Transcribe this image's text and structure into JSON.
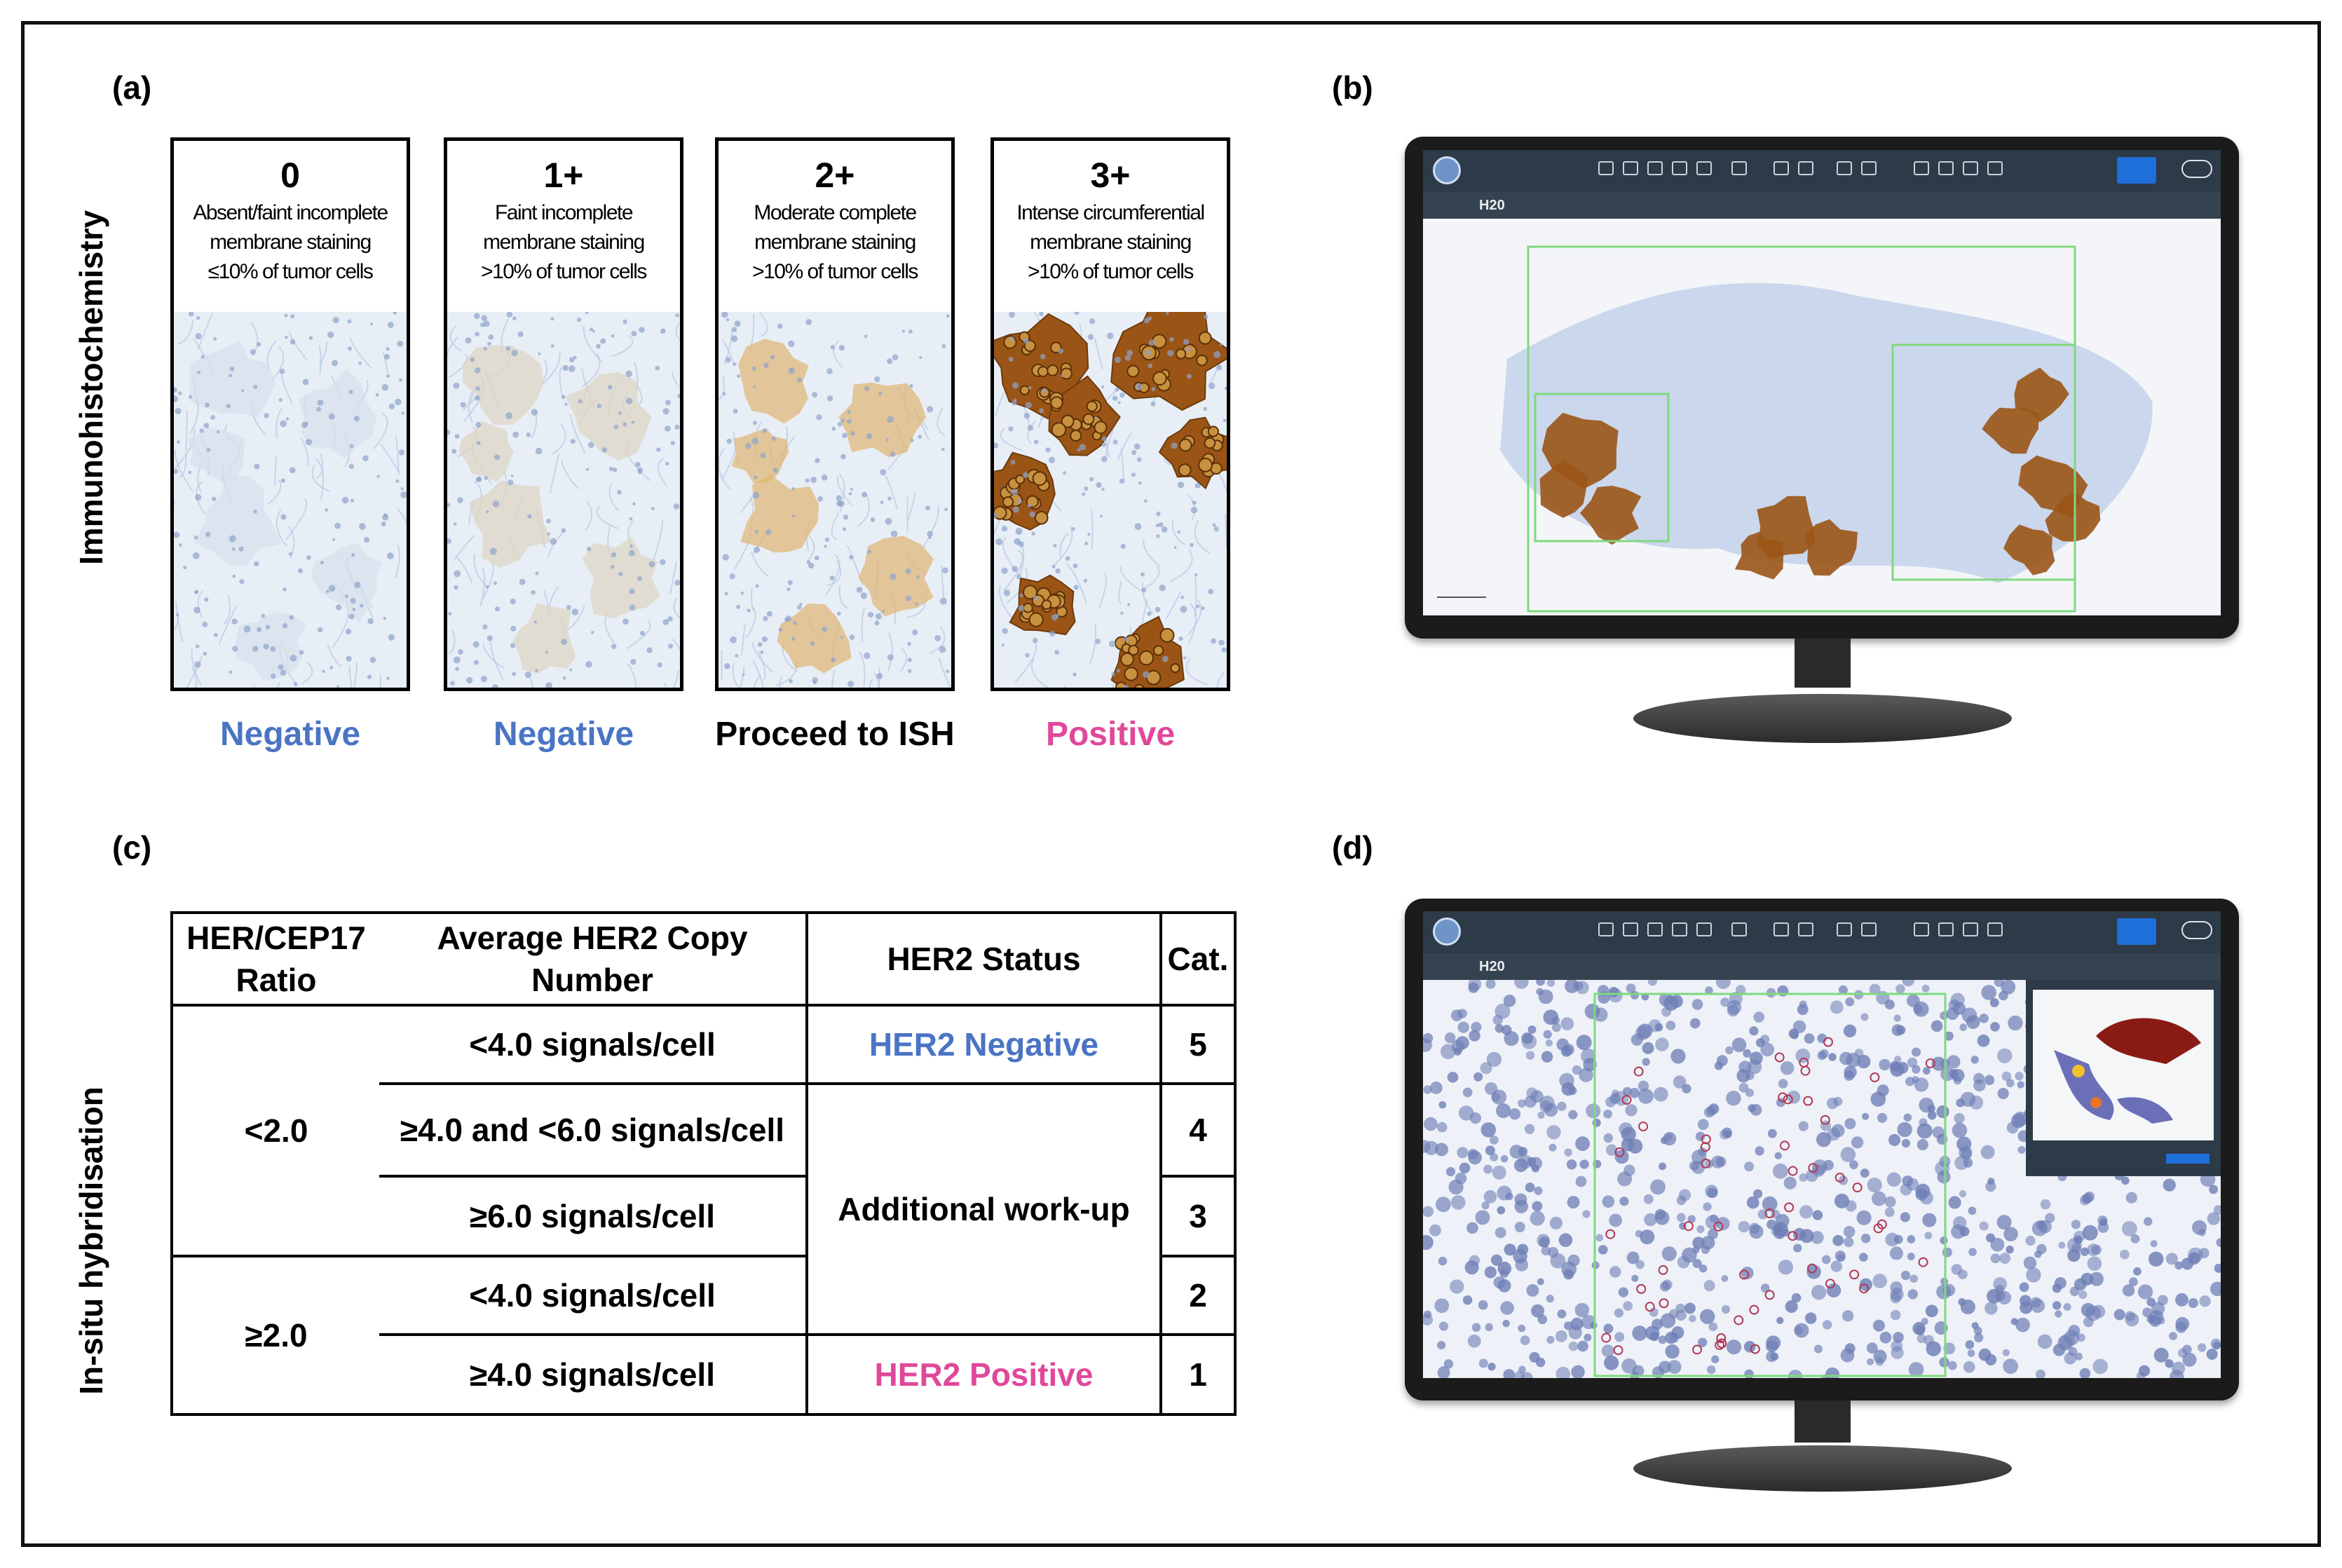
{
  "panels": {
    "a": "(a)",
    "b": "(b)",
    "c": "(c)",
    "d": "(d)"
  },
  "ihc": {
    "row_label": "Immunohistochemistry",
    "cards": [
      {
        "score": "0",
        "desc": [
          "Absent/faint incomplete",
          "membrane staining",
          "≤10% of tumor cells"
        ],
        "verdict": "Negative",
        "verdict_color": "#4a74c4",
        "stain": "none"
      },
      {
        "score": "1+",
        "desc": [
          "Faint incomplete",
          "membrane staining",
          ">10% of tumor cells"
        ],
        "verdict": "Negative",
        "verdict_color": "#4a74c4",
        "stain": "faint"
      },
      {
        "score": "2+",
        "desc": [
          "Moderate complete",
          "membrane staining",
          ">10% of tumor cells"
        ],
        "verdict": "Proceed to ISH",
        "verdict_color": "#000000",
        "stain": "moderate"
      },
      {
        "score": "3+",
        "desc": [
          "Intense circumferential",
          "membrane staining",
          ">10% of tumor cells"
        ],
        "verdict": "Positive",
        "verdict_color": "#e0489a",
        "stain": "intense"
      }
    ]
  },
  "ish": {
    "row_label": "In-situ hybridisation",
    "headers": [
      "HER/CEP17 Ratio",
      "Average HER2 Copy Number",
      "HER2 Status",
      "Cat."
    ],
    "ratio_groups": [
      "<2.0",
      "≥2.0"
    ],
    "copy_numbers": [
      "<4.0 signals/cell",
      "≥4.0 and <6.0 signals/cell",
      "≥6.0 signals/cell",
      "<4.0 signals/cell",
      "≥4.0 signals/cell"
    ],
    "statuses": {
      "negative": "HER2 Negative",
      "workup": "Additional work-up",
      "positive": "HER2 Positive"
    },
    "status_colors": {
      "negative": "#4a74c4",
      "positive": "#e0489a"
    },
    "categories": [
      "5",
      "4",
      "3",
      "2",
      "1"
    ]
  },
  "viewer": {
    "case_label": "H20"
  },
  "colors": {
    "dab": "#9a5516",
    "hematoxylin": "#8ea6d4",
    "roi": "#7fd97f",
    "toolbar": "#2d3a48"
  }
}
